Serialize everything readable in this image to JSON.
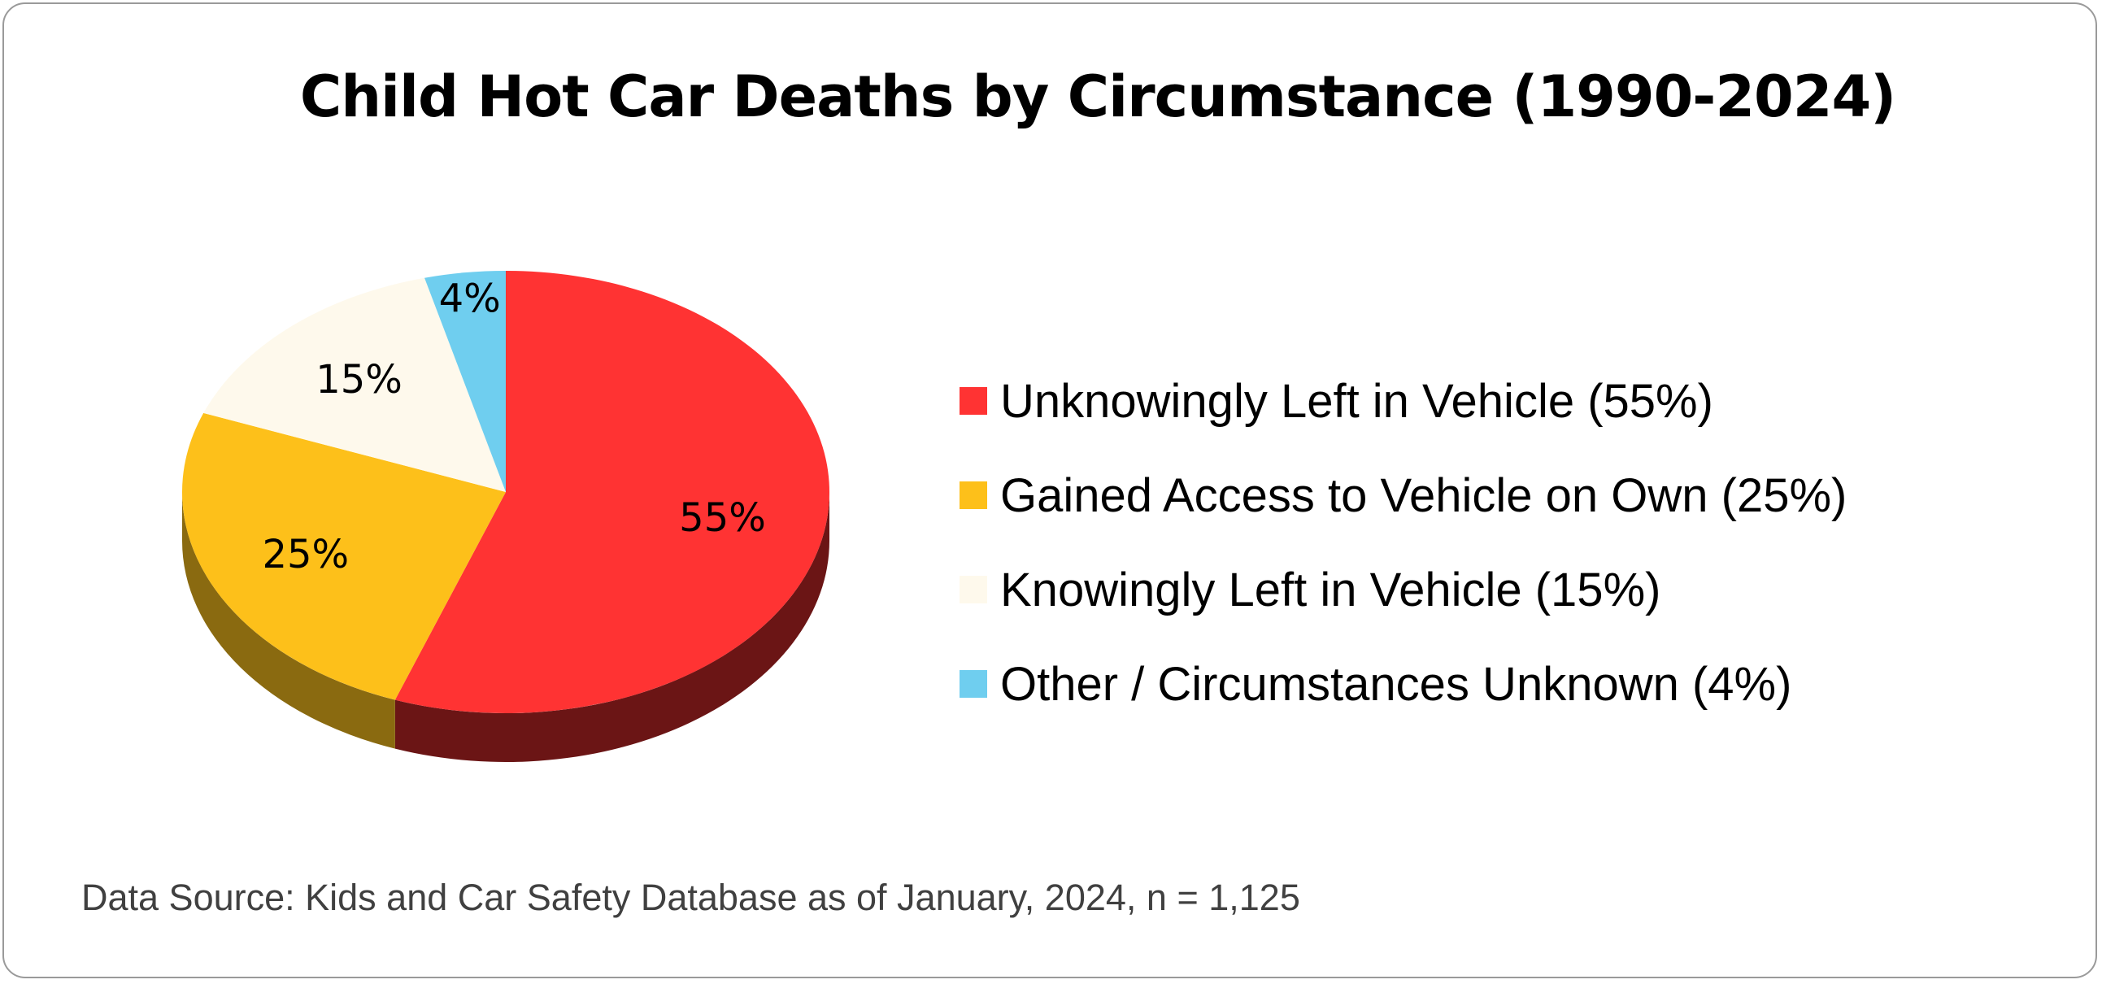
{
  "chart_data": {
    "type": "pie",
    "title": "Child Hot Car Deaths by Circumstance (1990-2024)",
    "slices": [
      {
        "label": "Unknowingly Left in Vehicle (55%)",
        "data_label": "55%",
        "value": 55,
        "color": "#FF3333",
        "side_color": "#6B1515"
      },
      {
        "label": "Gained Access to Vehicle on Own (25%)",
        "data_label": "25%",
        "value": 25,
        "color": "#FDC01A",
        "side_color": "#8A6A10"
      },
      {
        "label": "Knowingly Left in Vehicle (15%)",
        "data_label": "15%",
        "value": 15,
        "color": "#FEF9EC",
        "side_color": "#CFC9B8"
      },
      {
        "label": "Other / Circumstances Unknown (4%)",
        "data_label": "4%",
        "value": 4,
        "color": "#6FCEEF",
        "side_color": "#3A8AA6"
      }
    ],
    "legend_position": "right",
    "source": "Data Source: Kids and Car Safety Database as of January, 2024, n = 1,125"
  }
}
